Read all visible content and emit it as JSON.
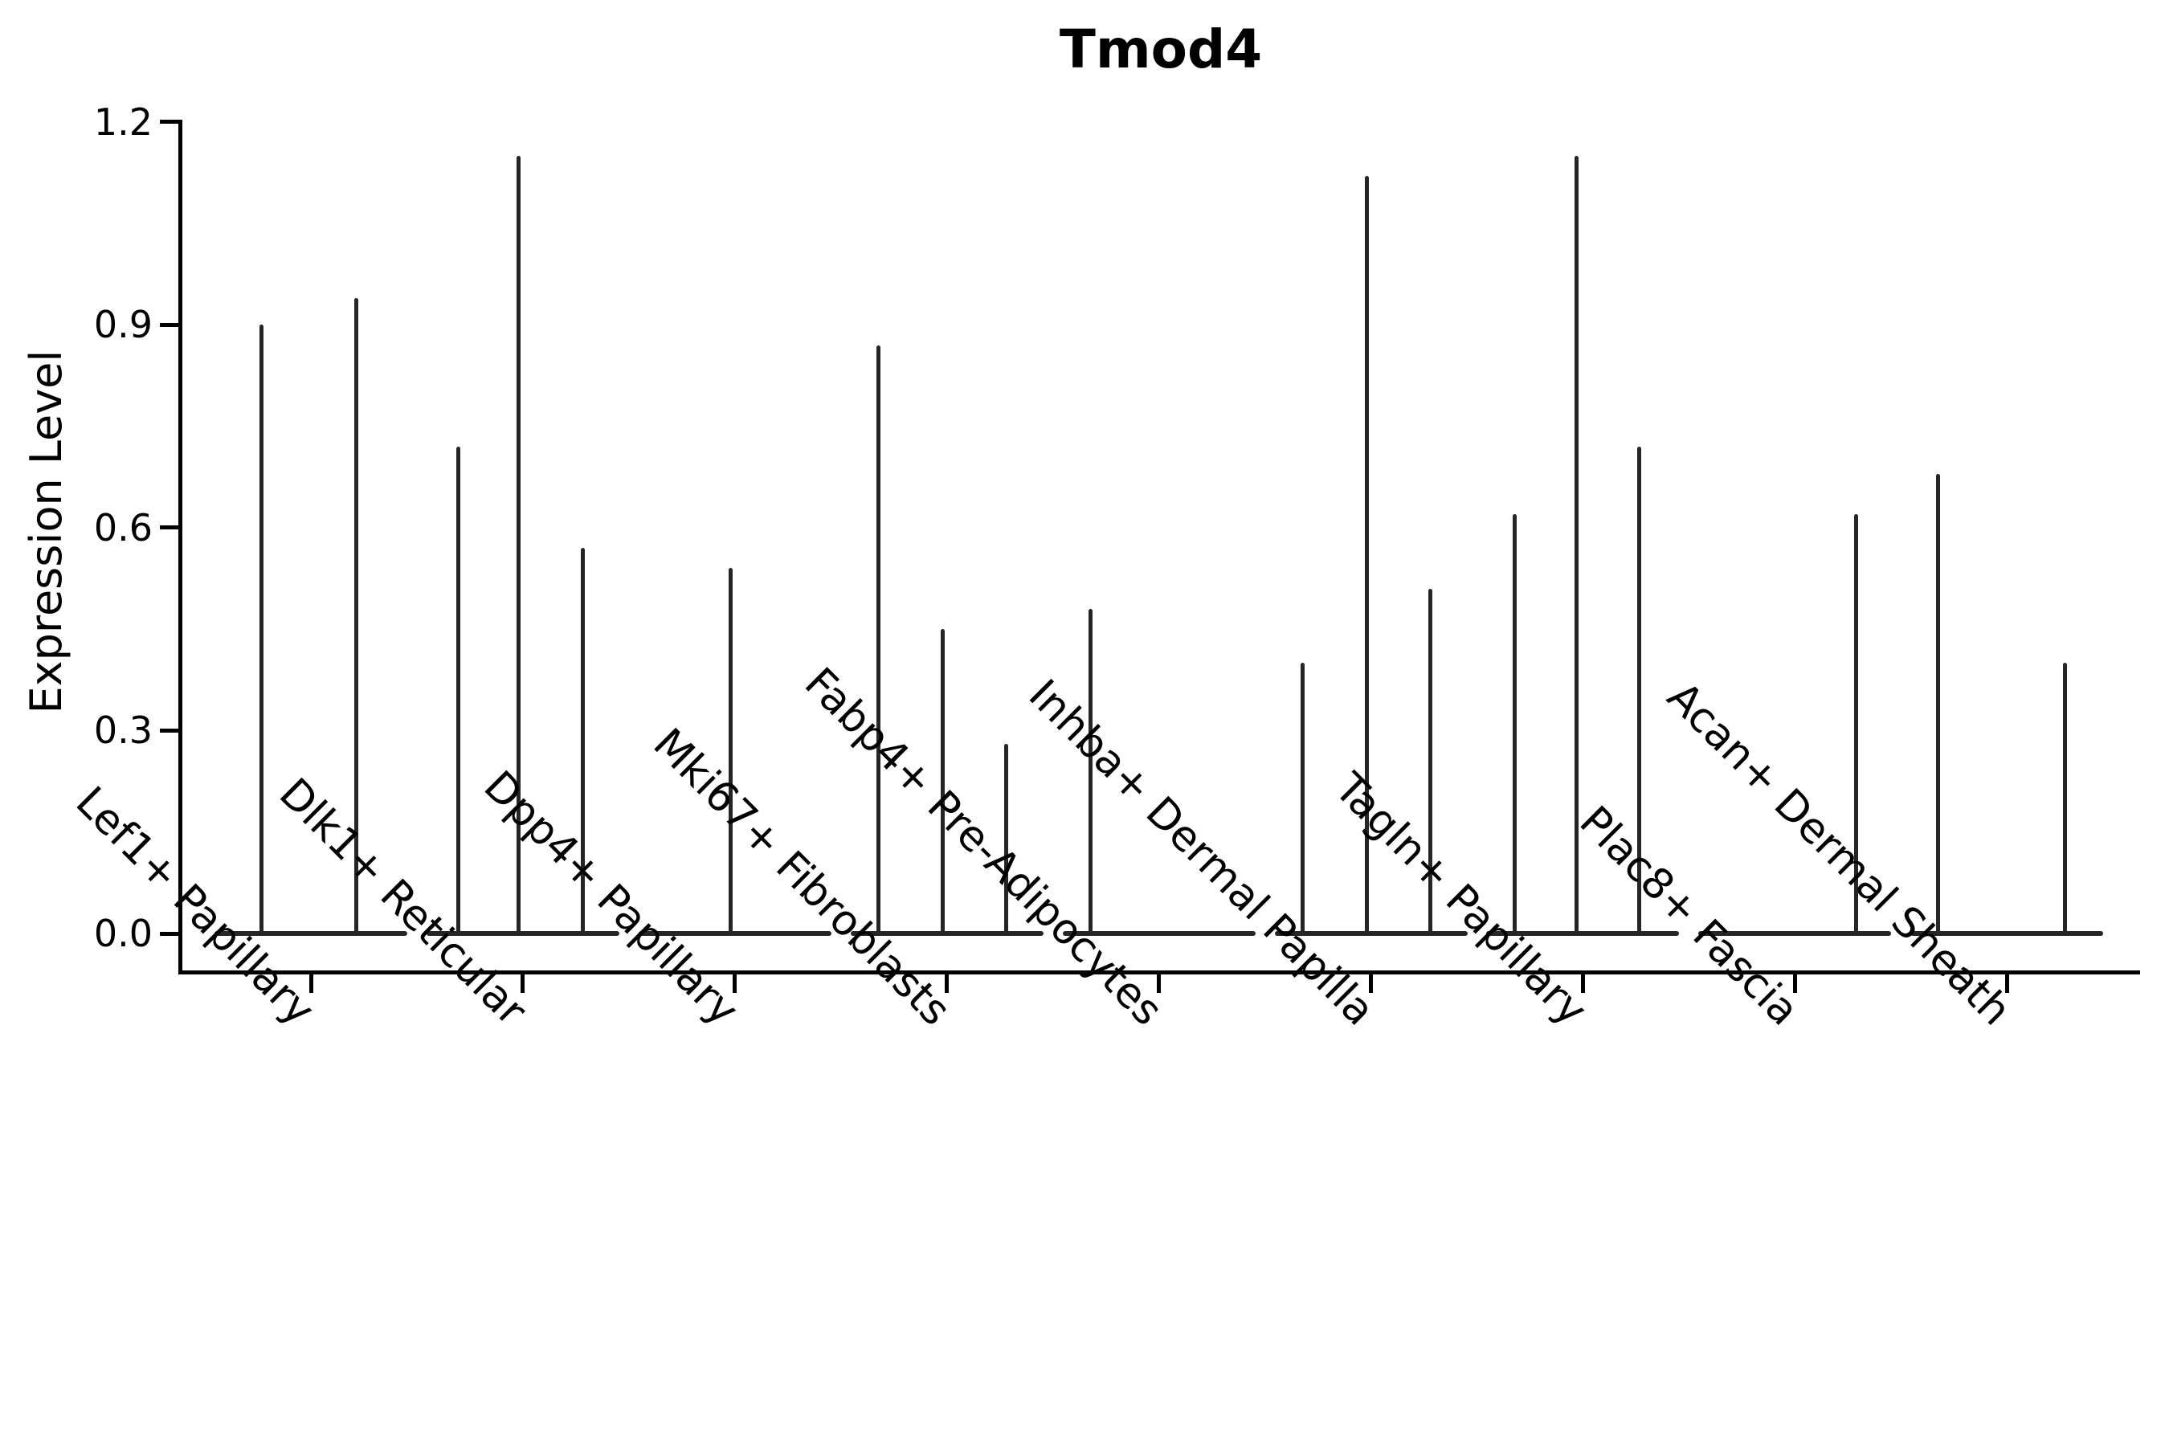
{
  "colors": {
    "background": "#ffffff",
    "axis": "#000000",
    "violin": "#262626"
  },
  "chart_data": {
    "type": "violin",
    "title": "Tmod4",
    "xlabel": "",
    "ylabel": "Expression Level",
    "ylim": [
      -0.06,
      1.21
    ],
    "grid": false,
    "legend": "none",
    "yticks": [
      {
        "value": 0.0,
        "label": "0.0"
      },
      {
        "value": 0.3,
        "label": "0.3"
      },
      {
        "value": 0.6,
        "label": "0.6"
      },
      {
        "value": 0.9,
        "label": "0.9"
      },
      {
        "value": 1.2,
        "label": "1.2"
      }
    ],
    "description": "Violin plot of Tmod4 expression; each category shows thin spike-like violins (max expression) over a flat base at 0.",
    "categories": [
      {
        "label": "Lef1+ Papillary",
        "violins": [
          {
            "offset": -62,
            "max": 0.9
          },
          {
            "offset": 56,
            "max": 0.94
          }
        ]
      },
      {
        "label": "Dlk1+ Reticular",
        "violins": [
          {
            "offset": -80,
            "max": 0.72
          },
          {
            "offset": -5,
            "max": 1.15
          },
          {
            "offset": 75,
            "max": 0.57
          }
        ]
      },
      {
        "label": "Dpp4+ Papillary",
        "violins": [
          {
            "offset": -5,
            "max": 0.54
          }
        ]
      },
      {
        "label": "Mki67+ Fibroblasts",
        "violins": [
          {
            "offset": -85,
            "max": 0.87
          },
          {
            "offset": -5,
            "max": 0.45
          },
          {
            "offset": 74,
            "max": 0.28
          }
        ]
      },
      {
        "label": "Fabp4+ Pre-Adipocytes",
        "violins": [
          {
            "offset": -85,
            "max": 0.48
          }
        ]
      },
      {
        "label": "Inhba+ Dermal Papilla",
        "violins": [
          {
            "offset": -85,
            "max": 0.4
          },
          {
            "offset": -5,
            "max": 1.12
          },
          {
            "offset": 74,
            "max": 0.51
          }
        ]
      },
      {
        "label": "Tagln+ Papillary",
        "violins": [
          {
            "offset": -85,
            "max": 0.62
          },
          {
            "offset": -8,
            "max": 1.15
          },
          {
            "offset": 70,
            "max": 0.72
          }
        ]
      },
      {
        "label": "Plac8+ Fascia",
        "violins": [
          {
            "offset": 76,
            "max": 0.62
          }
        ]
      },
      {
        "label": "Acan+ Dermal Sheath",
        "violins": [
          {
            "offset": -86,
            "max": 0.68
          },
          {
            "offset": 72,
            "max": 0.4
          }
        ]
      }
    ]
  }
}
